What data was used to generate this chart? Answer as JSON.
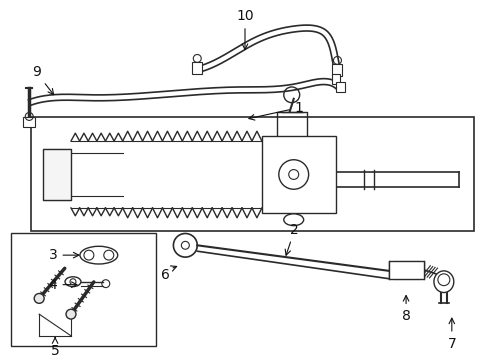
{
  "bg_color": "#ffffff",
  "line_color": "#2a2a2a",
  "fig_width": 4.89,
  "fig_height": 3.6,
  "dpi": 100,
  "label_font_size": 9,
  "label_color": "#111111"
}
